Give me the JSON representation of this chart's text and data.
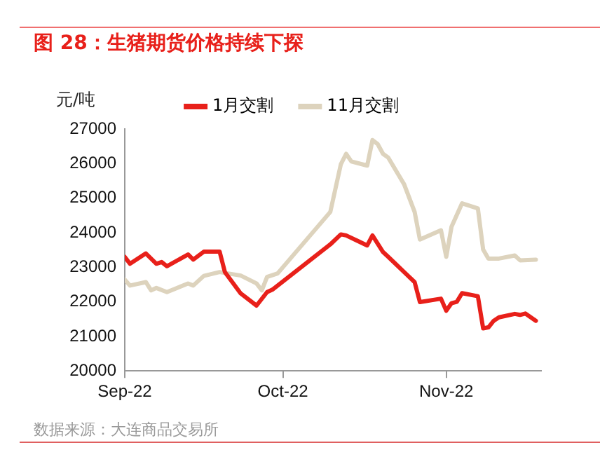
{
  "chart_data": {
    "type": "line",
    "title": "图 28：生猪期货价格持续下探",
    "ylabel": "元/吨",
    "annotations": [
      "数据来源：大连商品交易所"
    ],
    "xlim": [
      "2022-09-01",
      "2022-11-19"
    ],
    "xticks": [
      {
        "value": "2022-09-01",
        "label": "Sep-22"
      },
      {
        "value": "2022-10-01",
        "label": "Oct-22"
      },
      {
        "value": "2022-11-01",
        "label": "Nov-22"
      }
    ],
    "ylim": [
      20000,
      27000
    ],
    "yticks": [
      20000,
      21000,
      22000,
      23000,
      24000,
      25000,
      26000,
      27000
    ],
    "grid": false,
    "legend": "top",
    "marker": "none",
    "line_style": "solid",
    "series": [
      {
        "name": "1月交割",
        "color": "#e8201a",
        "x": [
          "2022-09-01",
          "2022-09-02",
          "2022-09-05",
          "2022-09-07",
          "2022-09-08",
          "2022-09-09",
          "2022-09-13",
          "2022-09-14",
          "2022-09-16",
          "2022-09-19",
          "2022-09-20",
          "2022-09-23",
          "2022-09-26",
          "2022-09-28",
          "2022-09-29",
          "2022-10-10",
          "2022-10-12",
          "2022-10-13",
          "2022-10-17",
          "2022-10-18",
          "2022-10-20",
          "2022-10-21",
          "2022-10-24",
          "2022-10-26",
          "2022-10-27",
          "2022-10-31",
          "2022-11-01",
          "2022-11-02",
          "2022-11-03",
          "2022-11-04",
          "2022-11-07",
          "2022-11-08",
          "2022-11-09",
          "2022-11-10",
          "2022-11-11",
          "2022-11-14",
          "2022-11-15",
          "2022-11-16",
          "2022-11-18"
        ],
        "values": [
          23300,
          23100,
          23400,
          23100,
          23150,
          23030,
          23370,
          23220,
          23450,
          23450,
          22860,
          22240,
          21890,
          22280,
          22350,
          23660,
          23950,
          23920,
          23630,
          23920,
          23440,
          23300,
          22860,
          22570,
          21990,
          22090,
          21740,
          21960,
          22000,
          22250,
          22160,
          21230,
          21260,
          21450,
          21550,
          21650,
          21620,
          21660,
          21450
        ]
      },
      {
        "name": "11月交割",
        "color": "#ddd3bd",
        "x": [
          "2022-09-01",
          "2022-09-02",
          "2022-09-05",
          "2022-09-06",
          "2022-09-07",
          "2022-09-09",
          "2022-09-13",
          "2022-09-14",
          "2022-09-16",
          "2022-09-19",
          "2022-09-23",
          "2022-09-26",
          "2022-09-27",
          "2022-09-28",
          "2022-09-30",
          "2022-10-10",
          "2022-10-12",
          "2022-10-13",
          "2022-10-14",
          "2022-10-17",
          "2022-10-18",
          "2022-10-19",
          "2022-10-20",
          "2022-10-21",
          "2022-10-24",
          "2022-10-26",
          "2022-10-27",
          "2022-10-31",
          "2022-11-01",
          "2022-11-02",
          "2022-11-04",
          "2022-11-07",
          "2022-11-08",
          "2022-11-09",
          "2022-11-11",
          "2022-11-14",
          "2022-11-15",
          "2022-11-18"
        ],
        "values": [
          22640,
          22470,
          22570,
          22330,
          22400,
          22280,
          22530,
          22470,
          22750,
          22860,
          22760,
          22530,
          22330,
          22720,
          22820,
          24600,
          25980,
          26280,
          26060,
          25940,
          26680,
          26560,
          26280,
          26170,
          25400,
          24600,
          23800,
          24070,
          23300,
          24170,
          24850,
          24700,
          23510,
          23250,
          23250,
          23340,
          23200,
          23220
        ]
      }
    ]
  }
}
